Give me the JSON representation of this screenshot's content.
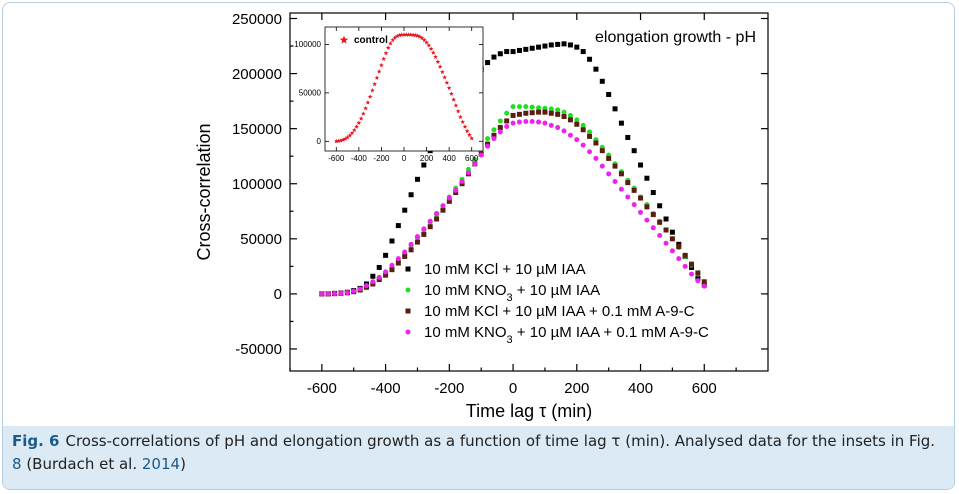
{
  "chart_data": [
    {
      "type": "scatter",
      "title": "",
      "annotation": "elongation growth - pH",
      "xlabel": "Time lag τ (min)",
      "ylabel": "Cross-correlation",
      "xlim": [
        -700,
        800
      ],
      "ylim": [
        -70000,
        255000
      ],
      "xticks": [
        -600,
        -400,
        -200,
        0,
        200,
        400,
        600
      ],
      "yticks": [
        -50000,
        0,
        50000,
        100000,
        150000,
        200000,
        250000
      ],
      "grid": false,
      "legend_position": "bottom-right",
      "series": [
        {
          "name": "10 mM KCl + 10 µM IAA",
          "legend_html": "10 mM KCl + 10 µM IAA",
          "color": "#000000",
          "marker": "square",
          "x": [
            -600,
            -580,
            -560,
            -540,
            -520,
            -500,
            -480,
            -460,
            -440,
            -420,
            -400,
            -380,
            -360,
            -340,
            -320,
            -300,
            -280,
            -260,
            -240,
            -220,
            -200,
            -180,
            -160,
            -140,
            -120,
            -100,
            -80,
            -60,
            -40,
            -20,
            0,
            20,
            40,
            60,
            80,
            100,
            120,
            140,
            160,
            180,
            200,
            220,
            240,
            260,
            280,
            300,
            320,
            340,
            360,
            380,
            400,
            420,
            440,
            460,
            480,
            500,
            520,
            540,
            560,
            580,
            600
          ],
          "y": [
            0,
            0,
            500,
            800,
            1500,
            3000,
            5000,
            9000,
            16000,
            24000,
            35000,
            48000,
            62000,
            76000,
            90000,
            104000,
            117000,
            130000,
            142000,
            152000,
            162000,
            171000,
            180000,
            189000,
            197000,
            204000,
            210000,
            215000,
            218000,
            220000,
            220000,
            221000,
            222000,
            223000,
            224000,
            225000,
            226000,
            226500,
            227000,
            226000,
            224000,
            220000,
            213000,
            204000,
            193000,
            181000,
            168000,
            155000,
            142000,
            130000,
            117000,
            105000,
            92000,
            80000,
            68000,
            56000,
            45000,
            34000,
            24000,
            14000,
            8000
          ]
        },
        {
          "name": "10 mM KNO3 + 10 µM IAA",
          "legend_html": "10 mM KNO<tspan baseline-shift=\"sub\" font-size=\"11\">3</tspan> + 10 µM IAA",
          "color": "#22dd22",
          "marker": "circle",
          "x": [
            -600,
            -580,
            -560,
            -540,
            -520,
            -500,
            -480,
            -460,
            -440,
            -420,
            -400,
            -380,
            -360,
            -340,
            -320,
            -300,
            -280,
            -260,
            -240,
            -220,
            -200,
            -180,
            -160,
            -140,
            -120,
            -100,
            -80,
            -60,
            -40,
            -20,
            0,
            20,
            40,
            60,
            80,
            100,
            120,
            140,
            160,
            180,
            200,
            220,
            240,
            260,
            280,
            300,
            320,
            340,
            360,
            380,
            400,
            420,
            440,
            460,
            480,
            500,
            520,
            540,
            560,
            580,
            600
          ],
          "y": [
            0,
            0,
            200,
            500,
            1000,
            2000,
            3500,
            6000,
            9000,
            13000,
            18000,
            24000,
            30000,
            37000,
            44000,
            51000,
            58000,
            65000,
            72000,
            80000,
            88000,
            96000,
            104000,
            113000,
            122000,
            132000,
            141000,
            149000,
            157000,
            164000,
            170000,
            170000,
            170000,
            169500,
            169000,
            168500,
            168000,
            167000,
            165000,
            162000,
            158000,
            153000,
            147000,
            140000,
            133000,
            126000,
            118000,
            111000,
            103000,
            96000,
            88000,
            81000,
            73000,
            66000,
            58000,
            50000,
            42000,
            34000,
            26000,
            18000,
            10000
          ]
        },
        {
          "name": "10 mM KCl + 10 µM IAA + 0.1 mM A-9-C",
          "legend_html": "10 mM KCl + 10 µM IAA + 0.1 mM A-9-C",
          "color": "#5a1e10",
          "marker": "square",
          "x": [
            -600,
            -580,
            -560,
            -540,
            -520,
            -500,
            -480,
            -460,
            -440,
            -420,
            -400,
            -380,
            -360,
            -340,
            -320,
            -300,
            -280,
            -260,
            -240,
            -220,
            -200,
            -180,
            -160,
            -140,
            -120,
            -100,
            -80,
            -60,
            -40,
            -20,
            0,
            20,
            40,
            60,
            80,
            100,
            120,
            140,
            160,
            180,
            200,
            220,
            240,
            260,
            280,
            300,
            320,
            340,
            360,
            380,
            400,
            420,
            440,
            460,
            480,
            500,
            520,
            540,
            560,
            580,
            600
          ],
          "y": [
            0,
            0,
            200,
            500,
            1000,
            2000,
            3500,
            6000,
            9000,
            13000,
            17000,
            22000,
            28000,
            34000,
            40000,
            47000,
            54000,
            61000,
            68000,
            76000,
            84000,
            92000,
            100000,
            109000,
            118000,
            127000,
            136000,
            144000,
            151000,
            157000,
            162000,
            163000,
            164000,
            164500,
            165000,
            165000,
            164000,
            163000,
            161000,
            158000,
            154000,
            149000,
            143000,
            137000,
            130000,
            123000,
            116000,
            109000,
            101000,
            94000,
            87000,
            79000,
            72000,
            65000,
            58000,
            50000,
            43000,
            35000,
            27000,
            19000,
            11000
          ]
        },
        {
          "name": "10 mM KNO3 + 10 µM IAA + 0.1 mM A-9-C",
          "legend_html": "10 mM KNO<tspan baseline-shift=\"sub\" font-size=\"11\">3</tspan> + 10 µM IAA + 0.1 mM A-9-C",
          "color": "#ee22ee",
          "marker": "circle",
          "x": [
            -600,
            -580,
            -560,
            -540,
            -520,
            -500,
            -480,
            -460,
            -440,
            -420,
            -400,
            -380,
            -360,
            -340,
            -320,
            -300,
            -280,
            -260,
            -240,
            -220,
            -200,
            -180,
            -160,
            -140,
            -120,
            -100,
            -80,
            -60,
            -40,
            -20,
            0,
            20,
            40,
            60,
            80,
            100,
            120,
            140,
            160,
            180,
            200,
            220,
            240,
            260,
            280,
            300,
            320,
            340,
            360,
            380,
            400,
            420,
            440,
            460,
            480,
            500,
            520,
            540,
            560,
            580,
            600
          ],
          "y": [
            0,
            0,
            300,
            600,
            1200,
            2500,
            4500,
            7500,
            11000,
            15000,
            20000,
            26000,
            32000,
            38000,
            45000,
            52000,
            59000,
            66000,
            73000,
            80000,
            87000,
            94000,
            102000,
            110000,
            118000,
            126000,
            134000,
            141000,
            147000,
            152000,
            155000,
            156000,
            156500,
            156500,
            156000,
            155000,
            153000,
            151000,
            148000,
            144000,
            140000,
            135000,
            129000,
            123000,
            116000,
            109000,
            102000,
            95000,
            88000,
            81000,
            74000,
            67000,
            60000,
            53000,
            46000,
            39000,
            32000,
            25000,
            18000,
            12000,
            7000
          ]
        }
      ]
    },
    {
      "type": "scatter",
      "title": "",
      "xlabel": "",
      "ylabel": "",
      "xlim": [
        -700,
        700
      ],
      "ylim": [
        -10000,
        118000
      ],
      "xticks": [
        -600,
        -400,
        -200,
        0,
        200,
        400,
        600
      ],
      "yticks": [
        0,
        50000,
        100000
      ],
      "grid": false,
      "legend_position": "top-left",
      "series": [
        {
          "name": "control",
          "legend_html": "control",
          "color": "#e8141e",
          "marker": "star",
          "x": [
            -600,
            -580,
            -560,
            -540,
            -520,
            -500,
            -480,
            -460,
            -440,
            -420,
            -400,
            -380,
            -360,
            -340,
            -320,
            -300,
            -280,
            -260,
            -240,
            -220,
            -200,
            -180,
            -160,
            -140,
            -120,
            -100,
            -80,
            -60,
            -40,
            -20,
            0,
            20,
            40,
            60,
            80,
            100,
            120,
            140,
            160,
            180,
            200,
            220,
            240,
            260,
            280,
            300,
            320,
            340,
            360,
            380,
            400,
            420,
            440,
            460,
            480,
            500,
            520,
            540,
            560,
            580,
            600
          ],
          "y": [
            0,
            300,
            800,
            1500,
            2500,
            4000,
            6000,
            8500,
            11500,
            15000,
            19000,
            23500,
            28500,
            34000,
            40000,
            46000,
            52500,
            59000,
            65500,
            72000,
            78500,
            85000,
            91000,
            96500,
            101000,
            104500,
            107000,
            108500,
            109500,
            110000,
            110000,
            110000,
            110000,
            110000,
            109800,
            109500,
            109000,
            108000,
            106500,
            104500,
            102000,
            99000,
            95500,
            91500,
            87000,
            82000,
            77000,
            71500,
            66000,
            60500,
            55000,
            49000,
            43000,
            37000,
            31000,
            25000,
            20000,
            15000,
            10500,
            6500,
            3000
          ]
        }
      ]
    }
  ],
  "caption": {
    "fig_label": "Fig. 6",
    "text_1": "Cross-correlations of pH and elongation growth as a function of time lag τ (min). Analysed data for the insets in Fig. ",
    "fig_ref": "8",
    "text_2": " (Burdach et al. ",
    "year_ref": "2014",
    "text_3": ")"
  }
}
